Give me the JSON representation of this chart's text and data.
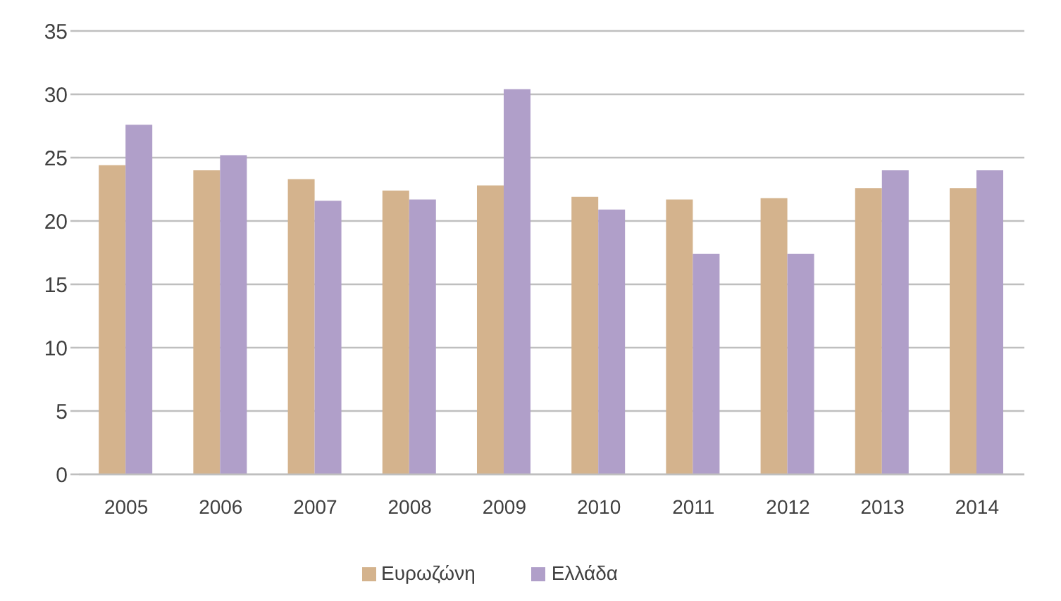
{
  "chart_data": {
    "type": "bar",
    "categories": [
      "2005",
      "2006",
      "2007",
      "2008",
      "2009",
      "2010",
      "2011",
      "2012",
      "2013",
      "2014"
    ],
    "series": [
      {
        "name": "Ευρωζώνη",
        "color": "#d4b38d",
        "values": [
          24.4,
          24.0,
          23.3,
          22.4,
          22.8,
          21.9,
          21.7,
          21.8,
          22.6,
          22.6
        ]
      },
      {
        "name": "Ελλάδα",
        "color": "#b09fc9",
        "values": [
          27.6,
          25.2,
          21.6,
          21.7,
          30.4,
          20.9,
          17.4,
          17.4,
          24.0,
          24.0
        ]
      }
    ],
    "ylim": [
      0,
      35
    ],
    "yticks": [
      0,
      5,
      10,
      15,
      20,
      25,
      30,
      35
    ],
    "grid": "y",
    "legend": "bottom"
  }
}
